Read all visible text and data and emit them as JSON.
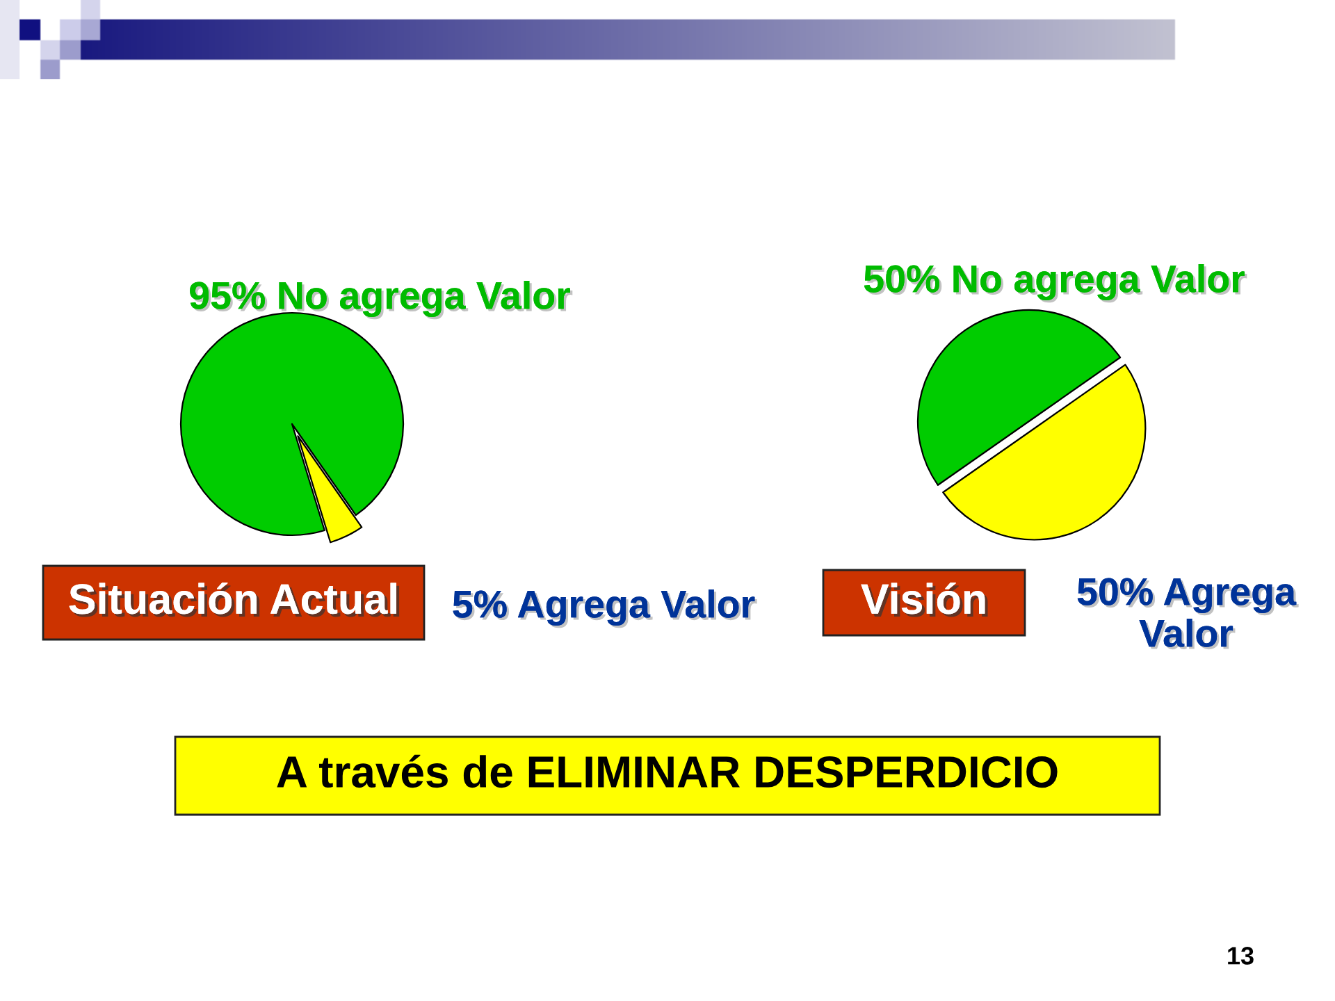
{
  "chart_data": [
    {
      "type": "pie",
      "title": "Situación Actual",
      "categories": [
        "No agrega Valor",
        "Agrega Valor"
      ],
      "values": [
        95,
        5
      ],
      "colors": [
        "#00cc00",
        "#ffff00"
      ],
      "value_labels": [
        "95%",
        "5%"
      ]
    },
    {
      "type": "pie",
      "title": "Visión",
      "categories": [
        "No agrega Valor",
        "Agrega Valor"
      ],
      "values": [
        50,
        50
      ],
      "colors": [
        "#00cc00",
        "#ffff00"
      ],
      "value_labels": [
        "50%",
        "50%"
      ]
    },
    {
      "type": "other",
      "title": "A través de ELIMINAR DESPERDICIO",
      "annotations": [
        "13"
      ]
    }
  ]
}
